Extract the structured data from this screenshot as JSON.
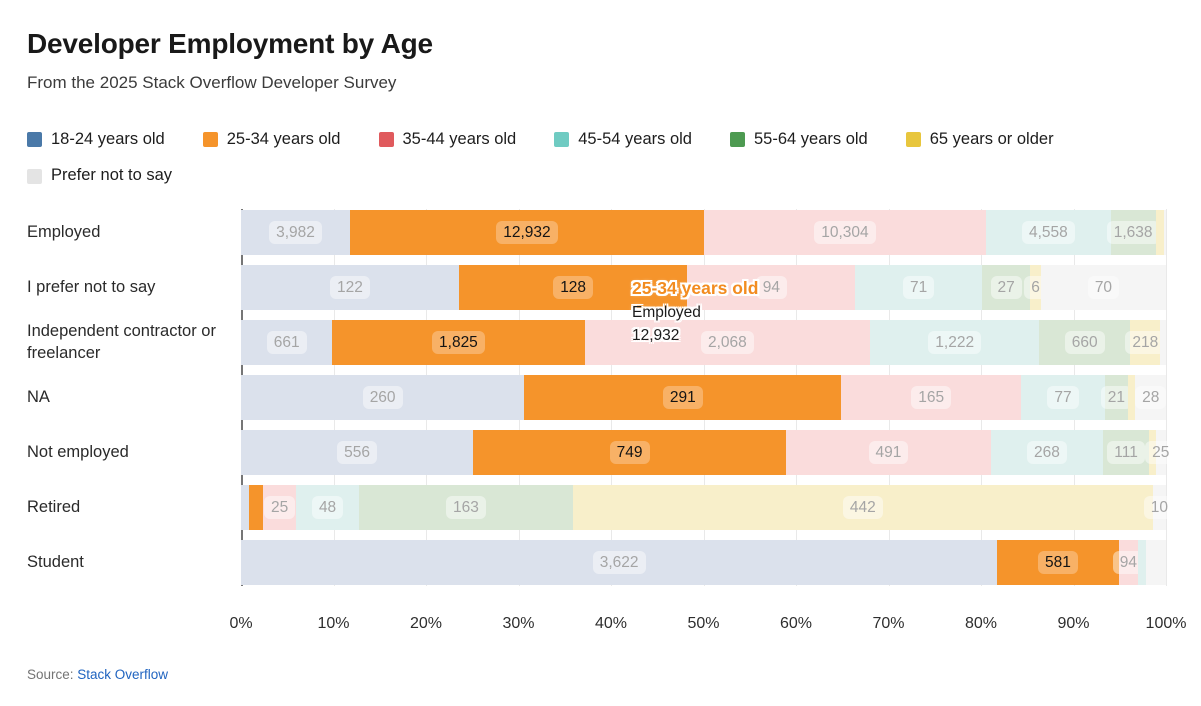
{
  "header": {
    "title": "Developer Employment by Age",
    "subtitle": "From the 2025 Stack Overflow Developer Survey"
  },
  "legend": [
    {
      "label": "18-24 years old",
      "color": "#4a79a8"
    },
    {
      "label": "25-34 years old",
      "color": "#f5942b"
    },
    {
      "label": "35-44 years old",
      "color": "#e05a5d"
    },
    {
      "label": "45-54 years old",
      "color": "#6fcbc2"
    },
    {
      "label": "55-64 years old",
      "color": "#4d9a51"
    },
    {
      "label": "65 years or older",
      "color": "#e8c63d"
    },
    {
      "label": "Prefer not to say",
      "color": "#e4e4e4"
    }
  ],
  "chart_data": {
    "type": "bar",
    "variant": "stacked-100-horizontal",
    "title": "Developer Employment by Age",
    "subtitle": "From the 2025 Stack Overflow Developer Survey",
    "series_keys": [
      "18-24 years old",
      "25-34 years old",
      "35-44 years old",
      "45-54 years old",
      "55-64 years old",
      "65 years or older",
      "Prefer not to say"
    ],
    "highlighted_series": "25-34 years old",
    "highlight_index": 1,
    "highlight_color": "#f5942b",
    "muted_colors": [
      "#dbe1ec",
      "#f5942b",
      "#fadcdc",
      "#dff0ee",
      "#d9e7d5",
      "#f8efca",
      "#f5f5f5"
    ],
    "categories": [
      "Employed",
      "I prefer not to say",
      "Independent contractor or freelancer",
      "NA",
      "Not employed",
      "Retired",
      "Student"
    ],
    "rows": [
      {
        "category": "Employed",
        "values": [
          3982,
          12932,
          10304,
          4558,
          1638,
          290,
          90
        ],
        "labels": [
          "3,982",
          "12,932",
          "10,304",
          "4,558",
          "1,638",
          "",
          ""
        ]
      },
      {
        "category": "I prefer not to say",
        "values": [
          122,
          128,
          94,
          71,
          27,
          6,
          70
        ],
        "labels": [
          "122",
          "128",
          "94",
          "71",
          "27",
          "6",
          "70"
        ]
      },
      {
        "category": "Independent contractor or freelancer",
        "values": [
          661,
          1825,
          2068,
          1222,
          660,
          218,
          40
        ],
        "labels": [
          "661",
          "1,825",
          "2,068",
          "1,222",
          "660",
          "218",
          ""
        ]
      },
      {
        "category": "NA",
        "values": [
          260,
          291,
          165,
          77,
          21,
          7,
          28
        ],
        "labels": [
          "260",
          "291",
          "165",
          "77",
          "21",
          "",
          "28"
        ]
      },
      {
        "category": "Not employed",
        "values": [
          556,
          749,
          491,
          268,
          111,
          15,
          25
        ],
        "labels": [
          "556",
          "749",
          "491",
          "268",
          "111",
          "",
          "25"
        ]
      },
      {
        "category": "Retired",
        "values": [
          6,
          11,
          25,
          48,
          163,
          442,
          10
        ],
        "labels": [
          "",
          "",
          "25",
          "48",
          "163",
          "442",
          "10"
        ]
      },
      {
        "category": "Student",
        "values": [
          3622,
          581,
          94,
          38,
          0,
          0,
          95
        ],
        "labels": [
          "3,622",
          "581",
          "94",
          "",
          "",
          "",
          ""
        ]
      }
    ],
    "x_ticks": [
      "0%",
      "10%",
      "20%",
      "30%",
      "40%",
      "50%",
      "60%",
      "70%",
      "80%",
      "90%",
      "100%"
    ],
    "xlim": [
      0,
      100
    ],
    "grid": true,
    "legend_position": "top"
  },
  "tooltip": {
    "series": "25-34 years old",
    "category": "Employed",
    "value": "12,932",
    "series_color": "#f28c20"
  },
  "source": {
    "prefix": "Source: ",
    "link_label": "Stack Overflow",
    "link_color": "#2064c0"
  }
}
